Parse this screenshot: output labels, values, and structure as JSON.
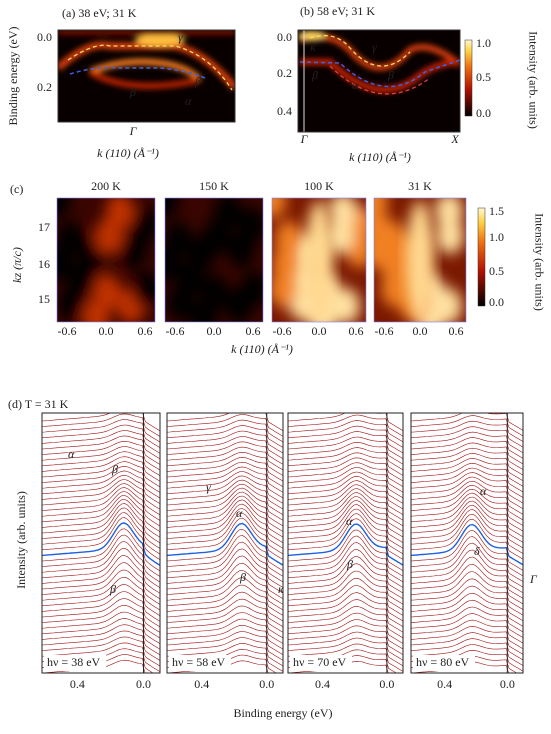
{
  "panel_a": {
    "label": "(a) 38 eV; 31 K",
    "ylabel": "Binding energy (eV)",
    "yticks": [
      "0.0",
      "0.2"
    ],
    "xtick": "Γ",
    "xlabel": "k (110)  (Å⁻¹)",
    "bands": [
      "γ",
      "β",
      "β",
      "α"
    ]
  },
  "panel_b": {
    "label": "(b) 58 eV; 31 K",
    "yticks": [
      "0.0",
      "0.2",
      "0.4"
    ],
    "xticks": [
      "Γ",
      "X"
    ],
    "xlabel": "k (110)  (Å⁻¹)",
    "bands": [
      "κ",
      "γ",
      "β",
      "α",
      "β"
    ],
    "colorbar": {
      "label": "Intensity (arb. units)",
      "ticks": [
        "1.0",
        "0.5",
        "0.0"
      ]
    }
  },
  "panel_c": {
    "label": "(c)",
    "titles": [
      "200 K",
      "150 K",
      "100 K",
      "31 K"
    ],
    "ylabel": "kz (π/c)",
    "yticks": [
      "17",
      "16",
      "15"
    ],
    "xticks": [
      "-0.6",
      "0.0",
      "0.6"
    ],
    "xlabel": "k (110)  (Å⁻¹)",
    "colorbar": {
      "label": "Intensity (arb. units)",
      "ticks": [
        "1.5",
        "1.0",
        "0.5",
        "0.0"
      ]
    }
  },
  "panel_d": {
    "label": "(d) T = 31 K",
    "ylabel": "Intensity (arb. units)",
    "xlabel": "Binding energy (eV)",
    "xticks": [
      "0.4",
      "0.0"
    ],
    "gamma": "Γ",
    "panels": [
      {
        "photon": "hν = 38 eV",
        "bands": [
          "α",
          "β",
          "β"
        ]
      },
      {
        "photon": "hν = 58 eV",
        "bands": [
          "γ",
          "α",
          "β",
          "κ"
        ]
      },
      {
        "photon": "hν = 70 eV",
        "bands": [
          "α",
          "β"
        ]
      },
      {
        "photon": "hν = 80 eV",
        "bands": [
          "α",
          "δ"
        ]
      }
    ]
  }
}
